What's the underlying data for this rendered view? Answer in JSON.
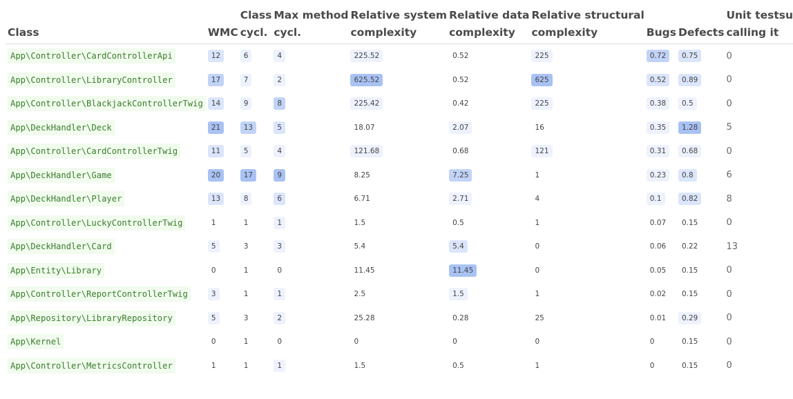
{
  "headers": {
    "class": "Class",
    "wmc": "WMC",
    "class_cycl": [
      "Class",
      "cycl."
    ],
    "max_method_cycl": [
      "Max method",
      "cycl."
    ],
    "rel_system": [
      "Relative system",
      "complexity"
    ],
    "rel_data": [
      "Relative data",
      "complexity"
    ],
    "rel_structural": [
      "Relative structural",
      "complexity"
    ],
    "bugs": "Bugs",
    "defects": "Defects",
    "unit_tests": [
      "Unit testsuites",
      "calling it"
    ]
  },
  "colors": {
    "highlight_light": "#edf2fd",
    "highlight_mid": "#dbe5fb",
    "highlight_strong": "#c1d3f7",
    "highlight_max": "#a9c2f4",
    "class_text": "#3a7d2c",
    "class_bg": "#f1fbee"
  },
  "rows": [
    {
      "class": "App\\Controller\\CardControllerApi",
      "wmc": "12",
      "class_cycl": "6",
      "max_method_cycl": "4",
      "rel_system": "225.52",
      "rel_data": "0.52",
      "rel_structural": "225",
      "bugs": "0.72",
      "defects": "0.75",
      "tests": "0",
      "hl": {
        "wmc": "mid",
        "class_cycl": "light",
        "max_method_cycl": "light",
        "rel_system": "light",
        "rel_data": "none",
        "rel_structural": "light",
        "bugs": "strong",
        "defects": "mid"
      }
    },
    {
      "class": "App\\Controller\\LibraryController",
      "wmc": "17",
      "class_cycl": "7",
      "max_method_cycl": "2",
      "rel_system": "625.52",
      "rel_data": "0.52",
      "rel_structural": "625",
      "bugs": "0.52",
      "defects": "0.89",
      "tests": "0",
      "hl": {
        "wmc": "strong",
        "class_cycl": "light",
        "max_method_cycl": "light",
        "rel_system": "max",
        "rel_data": "none",
        "rel_structural": "max",
        "bugs": "mid",
        "defects": "mid"
      }
    },
    {
      "class": "App\\Controller\\BlackjackControllerTwig",
      "wmc": "14",
      "class_cycl": "9",
      "max_method_cycl": "8",
      "rel_system": "225.42",
      "rel_data": "0.42",
      "rel_structural": "225",
      "bugs": "0.38",
      "defects": "0.5",
      "tests": "0",
      "hl": {
        "wmc": "mid",
        "class_cycl": "light",
        "max_method_cycl": "strong",
        "rel_system": "light",
        "rel_data": "none",
        "rel_structural": "light",
        "bugs": "light",
        "defects": "light"
      }
    },
    {
      "class": "App\\DeckHandler\\Deck",
      "wmc": "21",
      "class_cycl": "13",
      "max_method_cycl": "5",
      "rel_system": "18.07",
      "rel_data": "2.07",
      "rel_structural": "16",
      "bugs": "0.35",
      "defects": "1.28",
      "tests": "5",
      "hl": {
        "wmc": "max",
        "class_cycl": "strong",
        "max_method_cycl": "mid",
        "rel_system": "none",
        "rel_data": "light",
        "rel_structural": "none",
        "bugs": "light",
        "defects": "max"
      }
    },
    {
      "class": "App\\Controller\\CardControllerTwig",
      "wmc": "11",
      "class_cycl": "5",
      "max_method_cycl": "4",
      "rel_system": "121.68",
      "rel_data": "0.68",
      "rel_structural": "121",
      "bugs": "0.31",
      "defects": "0.68",
      "tests": "0",
      "hl": {
        "wmc": "mid",
        "class_cycl": "light",
        "max_method_cycl": "light",
        "rel_system": "light",
        "rel_data": "none",
        "rel_structural": "light",
        "bugs": "light",
        "defects": "light"
      }
    },
    {
      "class": "App\\DeckHandler\\Game",
      "wmc": "20",
      "class_cycl": "17",
      "max_method_cycl": "9",
      "rel_system": "8.25",
      "rel_data": "7.25",
      "rel_structural": "1",
      "bugs": "0.23",
      "defects": "0.8",
      "tests": "6",
      "hl": {
        "wmc": "max",
        "class_cycl": "max",
        "max_method_cycl": "max",
        "rel_system": "none",
        "rel_data": "strong",
        "rel_structural": "none",
        "bugs": "light",
        "defects": "mid"
      }
    },
    {
      "class": "App\\DeckHandler\\Player",
      "wmc": "13",
      "class_cycl": "8",
      "max_method_cycl": "6",
      "rel_system": "6.71",
      "rel_data": "2.71",
      "rel_structural": "4",
      "bugs": "0.1",
      "defects": "0.82",
      "tests": "8",
      "hl": {
        "wmc": "mid",
        "class_cycl": "light",
        "max_method_cycl": "mid",
        "rel_system": "none",
        "rel_data": "light",
        "rel_structural": "none",
        "bugs": "light",
        "defects": "mid"
      }
    },
    {
      "class": "App\\Controller\\LuckyControllerTwig",
      "wmc": "1",
      "class_cycl": "1",
      "max_method_cycl": "1",
      "rel_system": "1.5",
      "rel_data": "0.5",
      "rel_structural": "1",
      "bugs": "0.07",
      "defects": "0.15",
      "tests": "0",
      "hl": {
        "wmc": "none",
        "class_cycl": "none",
        "max_method_cycl": "light",
        "rel_system": "none",
        "rel_data": "none",
        "rel_structural": "none",
        "bugs": "none",
        "defects": "none"
      }
    },
    {
      "class": "App\\DeckHandler\\Card",
      "wmc": "5",
      "class_cycl": "3",
      "max_method_cycl": "3",
      "rel_system": "5.4",
      "rel_data": "5.4",
      "rel_structural": "0",
      "bugs": "0.06",
      "defects": "0.22",
      "tests": "13",
      "hl": {
        "wmc": "light",
        "class_cycl": "none",
        "max_method_cycl": "light",
        "rel_system": "none",
        "rel_data": "mid",
        "rel_structural": "none",
        "bugs": "none",
        "defects": "none"
      }
    },
    {
      "class": "App\\Entity\\Library",
      "wmc": "0",
      "class_cycl": "1",
      "max_method_cycl": "0",
      "rel_system": "11.45",
      "rel_data": "11.45",
      "rel_structural": "0",
      "bugs": "0.05",
      "defects": "0.15",
      "tests": "0",
      "hl": {
        "wmc": "none",
        "class_cycl": "none",
        "max_method_cycl": "none",
        "rel_system": "none",
        "rel_data": "max",
        "rel_structural": "none",
        "bugs": "none",
        "defects": "none"
      }
    },
    {
      "class": "App\\Controller\\ReportControllerTwig",
      "wmc": "3",
      "class_cycl": "1",
      "max_method_cycl": "1",
      "rel_system": "2.5",
      "rel_data": "1.5",
      "rel_structural": "1",
      "bugs": "0.02",
      "defects": "0.15",
      "tests": "0",
      "hl": {
        "wmc": "light",
        "class_cycl": "none",
        "max_method_cycl": "light",
        "rel_system": "none",
        "rel_data": "light",
        "rel_structural": "none",
        "bugs": "none",
        "defects": "none"
      }
    },
    {
      "class": "App\\Repository\\LibraryRepository",
      "wmc": "5",
      "class_cycl": "3",
      "max_method_cycl": "2",
      "rel_system": "25.28",
      "rel_data": "0.28",
      "rel_structural": "25",
      "bugs": "0.01",
      "defects": "0.29",
      "tests": "0",
      "hl": {
        "wmc": "light",
        "class_cycl": "none",
        "max_method_cycl": "light",
        "rel_system": "none",
        "rel_data": "none",
        "rel_structural": "none",
        "bugs": "none",
        "defects": "light"
      }
    },
    {
      "class": "App\\Kernel",
      "wmc": "0",
      "class_cycl": "1",
      "max_method_cycl": "0",
      "rel_system": "0",
      "rel_data": "0",
      "rel_structural": "0",
      "bugs": "0",
      "defects": "0.15",
      "tests": "0",
      "hl": {
        "wmc": "none",
        "class_cycl": "none",
        "max_method_cycl": "none",
        "rel_system": "none",
        "rel_data": "none",
        "rel_structural": "none",
        "bugs": "none",
        "defects": "none"
      }
    },
    {
      "class": "App\\Controller\\MetricsController",
      "wmc": "1",
      "class_cycl": "1",
      "max_method_cycl": "1",
      "rel_system": "1.5",
      "rel_data": "0.5",
      "rel_structural": "1",
      "bugs": "0",
      "defects": "0.15",
      "tests": "0",
      "hl": {
        "wmc": "none",
        "class_cycl": "none",
        "max_method_cycl": "light",
        "rel_system": "none",
        "rel_data": "none",
        "rel_structural": "none",
        "bugs": "none",
        "defects": "none"
      }
    }
  ]
}
